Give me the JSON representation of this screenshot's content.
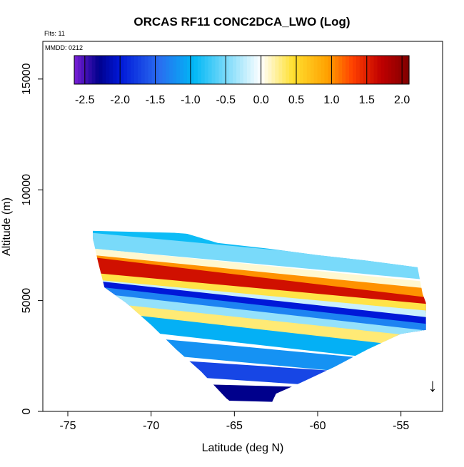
{
  "chart_data": {
    "type": "heatmap",
    "title": "ORCAS RF11 CONC2DCA_LWO (Log)",
    "notes": [
      "Flts: 11",
      "MMDD: 0212"
    ],
    "xlabel": "Latitude (deg N)",
    "ylabel": "Altitude (m)",
    "xlim": [
      -76.5,
      -52.5
    ],
    "ylim": [
      0,
      16700
    ],
    "x_ticks": [
      -75,
      -70,
      -65,
      -60,
      -55
    ],
    "y_ticks": [
      0,
      5000,
      10000,
      15000
    ],
    "x_tick_labels": [
      "-75",
      "-70",
      "-65",
      "-60",
      "-55"
    ],
    "y_tick_labels": [
      "0",
      "5000",
      "10000",
      "15000"
    ],
    "colorbar": {
      "range": [
        -2.65,
        2.1
      ],
      "ticks": [
        -2.5,
        -2.0,
        -1.5,
        -1.0,
        -0.5,
        0.0,
        0.5,
        1.0,
        1.5,
        2.0
      ],
      "tick_labels": [
        "-2.5",
        "-2.0",
        "-1.5",
        "-1.0",
        "-0.5",
        "0.0",
        "0.5",
        "1.0",
        "1.5",
        "2.0"
      ],
      "colors": [
        "#7a1fd6",
        "#00008c",
        "#0018d8",
        "#2a6cf0",
        "#00b8f5",
        "#ffffff",
        "#ffe030",
        "#ffa000",
        "#ff4000",
        "#c00000",
        "#800000"
      ]
    },
    "region": {
      "top_edge": [
        [
          -73.6,
          8150
        ],
        [
          -68.0,
          8050
        ],
        [
          -66.0,
          7600
        ],
        [
          -63.0,
          7350
        ],
        [
          -60.0,
          7050
        ],
        [
          -57.0,
          6800
        ],
        [
          -55.0,
          6600
        ],
        [
          -54.0,
          6500
        ],
        [
          -53.7,
          5300
        ],
        [
          -53.4,
          4700
        ],
        [
          -53.3,
          3700
        ]
      ],
      "bottom_edge": [
        [
          -73.6,
          8150
        ],
        [
          -73.2,
          6800
        ],
        [
          -72.8,
          5600
        ],
        [
          -71.5,
          4900
        ],
        [
          -70.0,
          3900
        ],
        [
          -68.5,
          2800
        ],
        [
          -67.0,
          1800
        ],
        [
          -65.5,
          600
        ],
        [
          -64.5,
          0
        ],
        [
          -63.0,
          0
        ],
        [
          -62.5,
          800
        ],
        [
          -61.0,
          1300
        ],
        [
          -59.0,
          2000
        ],
        [
          -57.0,
          2800
        ],
        [
          -55.0,
          3500
        ],
        [
          -53.3,
          3700
        ]
      ]
    },
    "bands": [
      {
        "x": [
          -73.5,
          -53.5
        ],
        "y": [
          8000,
          6800
        ],
        "value": -0.9
      },
      {
        "x": [
          -73.5,
          -53.5
        ],
        "y": [
          7700,
          6300
        ],
        "value": -0.5
      },
      {
        "x": [
          -73.5,
          -53.5
        ],
        "y": [
          7000,
          5500
        ],
        "value": 0.1
      },
      {
        "x": [
          -73.5,
          -53.5
        ],
        "y": [
          6700,
          5200
        ],
        "value": 1.0
      },
      {
        "x": [
          -73.5,
          -53.5
        ],
        "y": [
          6600,
          4800
        ],
        "value": 1.6
      },
      {
        "x": [
          -73.5,
          -53.5
        ],
        "y": [
          5900,
          4500
        ],
        "value": 0.4
      },
      {
        "x": [
          -73.5,
          -53.5
        ],
        "y": [
          5600,
          4200
        ],
        "value": -0.2
      },
      {
        "x": [
          -73.5,
          -53.5
        ],
        "y": [
          5550,
          3900
        ],
        "value": -2.0
      },
      {
        "x": [
          -73.5,
          -53.5
        ],
        "y": [
          5300,
          3600
        ],
        "value": -1.3
      },
      {
        "x": [
          -73.5,
          -53.5
        ],
        "y": [
          5000,
          3300
        ],
        "value": -0.4
      },
      {
        "x": [
          -73.5,
          -53.5
        ],
        "y": [
          4600,
          3000
        ],
        "value": 0.3
      },
      {
        "x": [
          -73.5,
          -53.5
        ],
        "y": [
          4200,
          2500
        ],
        "value": -1.0
      },
      {
        "x": [
          -73.5,
          -53.5
        ],
        "y": [
          3200,
          1800
        ],
        "value": -1.2
      },
      {
        "x": [
          -73.5,
          -53.5
        ],
        "y": [
          2200,
          1200
        ],
        "value": -1.7
      },
      {
        "x": [
          -73.5,
          -53.5
        ],
        "y": [
          1000,
          600
        ],
        "value": -2.3
      }
    ],
    "annotation": "↓",
    "annotation_at": [
      -53.1,
      900
    ]
  }
}
